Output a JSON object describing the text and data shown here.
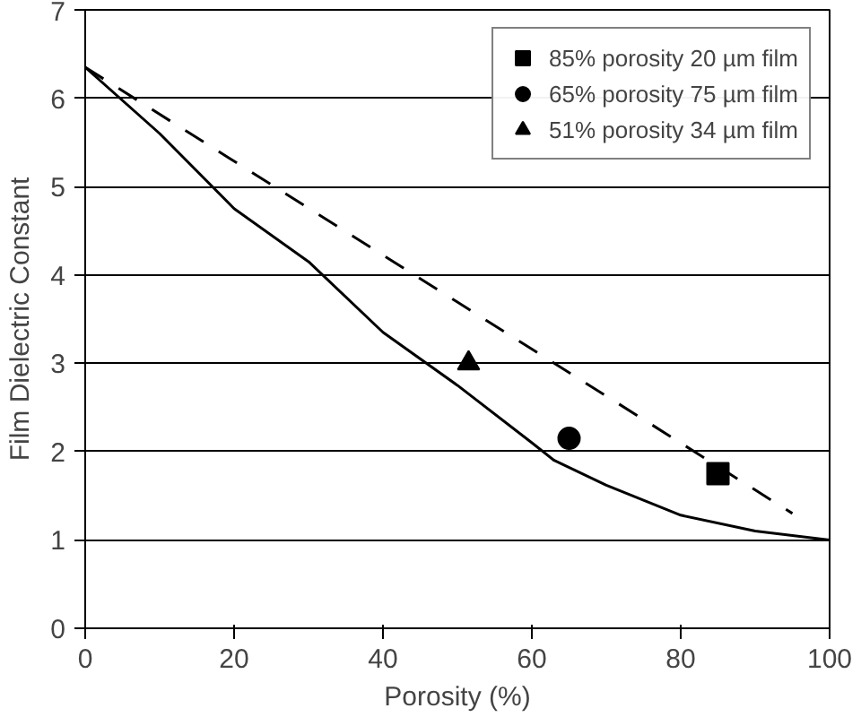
{
  "chart_data": {
    "type": "line",
    "xlabel": "Porosity (%)",
    "ylabel": "Film Dielectric Constant",
    "xlim": [
      0,
      100
    ],
    "ylim": [
      0,
      7
    ],
    "xticks": [
      0,
      20,
      40,
      60,
      80,
      100
    ],
    "yticks": [
      0,
      1,
      2,
      3,
      4,
      5,
      6,
      7
    ],
    "grid": "y",
    "legend": "top right",
    "series": [
      {
        "color": "#000000",
        "line_style": "solid",
        "marker": "none",
        "x": [
          0,
          10,
          20,
          30,
          40,
          50,
          60,
          63,
          70,
          80,
          90,
          100
        ],
        "values": [
          6.35,
          5.6,
          4.75,
          4.15,
          3.35,
          2.75,
          2.1,
          1.9,
          1.62,
          1.28,
          1.1,
          1.0
        ]
      },
      {
        "color": "#000000",
        "line_style": "dashed",
        "marker": "none",
        "x": [
          0,
          95
        ],
        "values": [
          6.35,
          1.3
        ]
      },
      {
        "type": "scatter",
        "name": "85% porosity 20 µm film",
        "color": "#000000",
        "marker": "square",
        "x": [
          85
        ],
        "values": [
          1.75
        ]
      },
      {
        "type": "scatter",
        "name": "65% porosity 75 µm film",
        "color": "#000000",
        "marker": "circle",
        "x": [
          65
        ],
        "values": [
          2.15
        ]
      },
      {
        "type": "scatter",
        "name": "51% porosity 34 µm film",
        "color": "#000000",
        "marker": "triangle",
        "x": [
          51.5
        ],
        "values": [
          3.0
        ]
      }
    ]
  }
}
